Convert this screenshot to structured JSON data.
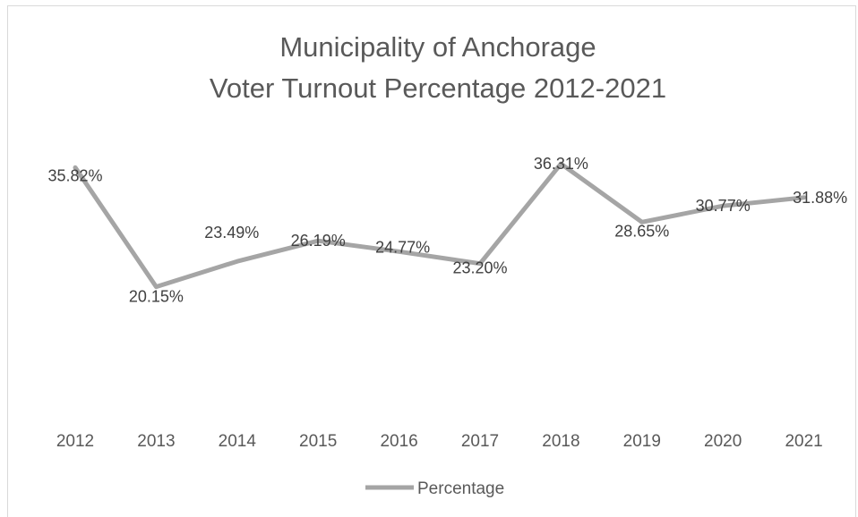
{
  "chart_data": {
    "type": "line",
    "title": [
      "Municipality of Anchorage",
      "Voter Turnout Percentage 2012-2021"
    ],
    "categories": [
      "2012",
      "2013",
      "2014",
      "2015",
      "2016",
      "2017",
      "2018",
      "2019",
      "2020",
      "2021"
    ],
    "series": [
      {
        "name": "Percentage",
        "values": [
          35.82,
          20.15,
          23.49,
          26.19,
          24.77,
          23.2,
          36.31,
          28.65,
          30.77,
          31.88
        ],
        "labels": [
          "35.82%",
          "20.15%",
          "23.49%",
          "26.19%",
          "24.77%",
          "23.20%",
          "36.31%",
          "28.65%",
          "30.77%",
          "31.88%"
        ],
        "color": "#a5a5a5"
      }
    ],
    "ylim": [
      10,
      40
    ],
    "grid": false,
    "y_axis_visible": false,
    "legend_position": "bottom"
  }
}
